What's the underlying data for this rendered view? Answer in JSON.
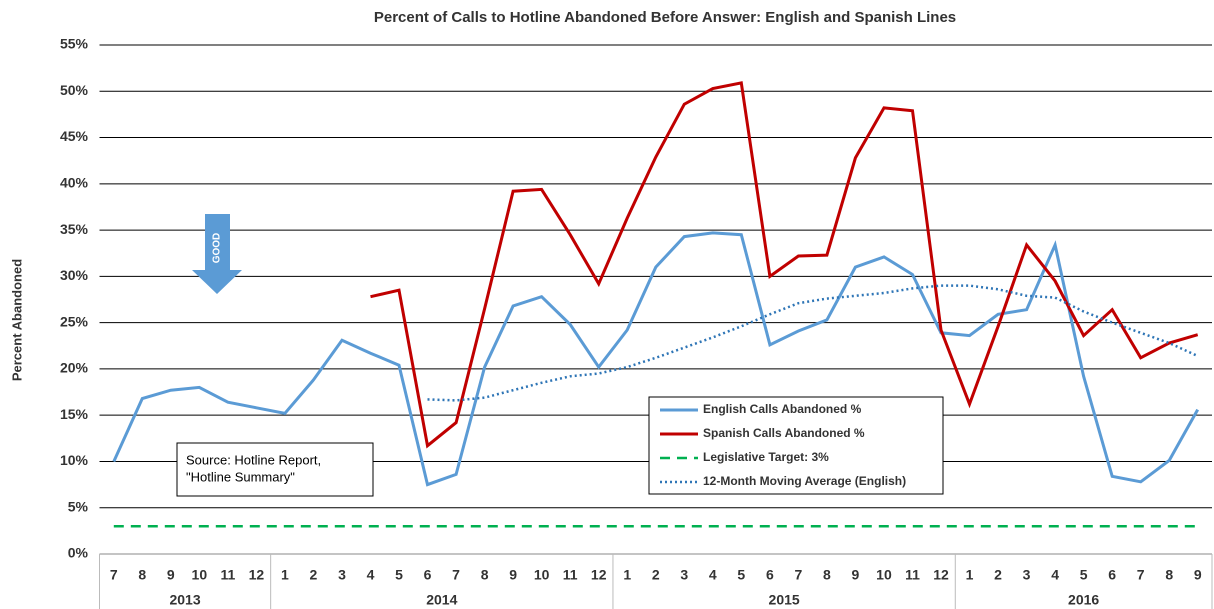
{
  "chart_data": {
    "type": "line",
    "title": "Percent of Calls to Hotline Abandoned Before Answer: English and Spanish Lines",
    "y_label": "Percent Abandoned",
    "annotation": [
      "Source: Hotline Report,",
      "\"Hotline Summary\""
    ],
    "arrow_label": "GOOD",
    "categories": [
      "7",
      "8",
      "9",
      "10",
      "11",
      "12",
      "1",
      "2",
      "3",
      "4",
      "5",
      "6",
      "7",
      "8",
      "9",
      "10",
      "11",
      "12",
      "1",
      "2",
      "3",
      "4",
      "5",
      "6",
      "7",
      "8",
      "9",
      "10",
      "11",
      "12",
      "1",
      "2",
      "3",
      "4",
      "5",
      "6",
      "7",
      "8",
      "9"
    ],
    "years": [
      "2013",
      "2014",
      "2015",
      "2016"
    ],
    "ylim": [
      0,
      55
    ],
    "yticks": [
      {
        "value": 0,
        "label": "0%"
      },
      {
        "value": 5,
        "label": "5%"
      },
      {
        "value": 10,
        "label": "10%"
      },
      {
        "value": 15,
        "label": "15%"
      },
      {
        "value": 20,
        "label": "20%"
      },
      {
        "value": 25,
        "label": "25%"
      },
      {
        "value": 30,
        "label": "30%"
      },
      {
        "value": 35,
        "label": "35%"
      },
      {
        "value": 40,
        "label": "40%"
      },
      {
        "value": 45,
        "label": "45%"
      },
      {
        "value": 50,
        "label": "50%"
      },
      {
        "value": 55,
        "label": "55%"
      }
    ],
    "grid": true,
    "series": [
      {
        "name": "English Calls Abandoned %",
        "color": "#5b9bd5",
        "style": "solid",
        "values": [
          10,
          16.8,
          17.7,
          18,
          16.4,
          15.8,
          15.2,
          18.8,
          23.1,
          21.7,
          20.4,
          7.5,
          8.6,
          20.2,
          26.8,
          27.8,
          24.8,
          20.2,
          24.2,
          31,
          34.3,
          34.7,
          34.5,
          22.6,
          24.1,
          25.3,
          31,
          32.1,
          30.2,
          23.9,
          23.6,
          25.9,
          26.4,
          33.4,
          19.2,
          8.4,
          7.8,
          10.1,
          15.6
        ]
      },
      {
        "name": "Spanish Calls Abandoned %",
        "color": "#c00000",
        "style": "solid",
        "values": [
          null,
          null,
          null,
          null,
          null,
          null,
          null,
          null,
          null,
          27.8,
          28.5,
          11.7,
          14.2,
          26.5,
          39.2,
          39.4,
          34.5,
          29.2,
          36.3,
          42.9,
          48.6,
          50.3,
          50.9,
          30,
          32.2,
          32.3,
          42.8,
          48.2,
          47.9,
          24.2,
          16.2,
          24.6,
          33.4,
          29.5,
          23.6,
          26.4,
          21.2,
          22.8,
          23.7
        ]
      },
      {
        "name": "Legislative Target: 3%",
        "color": "#00b050",
        "style": "dashed",
        "values": [
          3,
          3,
          3,
          3,
          3,
          3,
          3,
          3,
          3,
          3,
          3,
          3,
          3,
          3,
          3,
          3,
          3,
          3,
          3,
          3,
          3,
          3,
          3,
          3,
          3,
          3,
          3,
          3,
          3,
          3,
          3,
          3,
          3,
          3,
          3,
          3,
          3,
          3,
          3
        ]
      },
      {
        "name": "12-Month Moving Average (English)",
        "color": "#2e75b6",
        "style": "dotted",
        "values": [
          null,
          null,
          null,
          null,
          null,
          null,
          null,
          null,
          null,
          null,
          null,
          16.7,
          16.6,
          16.9,
          17.7,
          18.5,
          19.2,
          19.5,
          20.2,
          21.2,
          22.3,
          23.4,
          24.6,
          25.9,
          27.1,
          27.6,
          27.9,
          28.2,
          28.7,
          29.0,
          29.0,
          28.6,
          27.9,
          27.7,
          26.2,
          25.0,
          23.9,
          22.8,
          21.4
        ]
      }
    ]
  }
}
